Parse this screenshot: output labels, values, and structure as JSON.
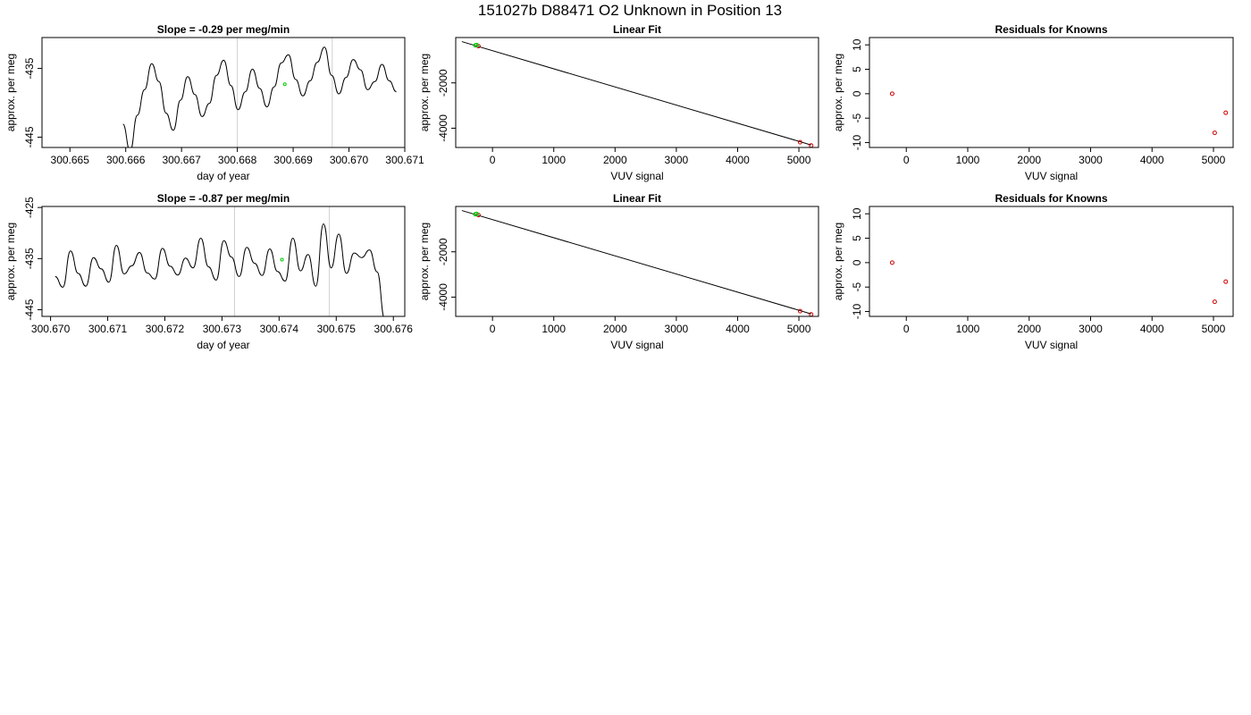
{
  "page": {
    "title": "151027b     D88471   O2 Unknown in Position  13"
  },
  "chart_data": [
    {
      "type": "line",
      "title": "Slope =  -0.29  per meg/min",
      "xlabel": "day of year",
      "ylabel": "approx. per meg",
      "xlim": [
        300.6645,
        300.671
      ],
      "ylim": [
        -446.5,
        -430.5
      ],
      "xticks": [
        "300.665",
        "300.666",
        "300.667",
        "300.668",
        "300.669",
        "300.670",
        "300.671"
      ],
      "yticks": [
        "-435",
        "-445"
      ],
      "vlines": [
        300.668,
        300.6697
      ],
      "marker": {
        "x": 300.66885,
        "y": -437.3,
        "color": "#00cc00"
      },
      "series": [
        {
          "x_start": 300.66595,
          "x_end": 300.67085,
          "seed": 7,
          "base": -439.2,
          "amp": 4.6,
          "values": [
            -443.1,
            -447.0,
            -441.8,
            -438.1,
            -434.3,
            -436.9,
            -441.5,
            -444.0,
            -439.6,
            -436.2,
            -438.8,
            -442.0,
            -440.1,
            -436.0,
            -433.8,
            -437.5,
            -441.0,
            -438.4,
            -435.1,
            -437.9,
            -440.6,
            -437.7,
            -434.2,
            -433.0,
            -436.6,
            -439.0,
            -436.8,
            -434.1,
            -431.9,
            -436.0,
            -438.7,
            -436.3,
            -433.7,
            -435.2,
            -438.1,
            -436.9,
            -434.4,
            -436.8,
            -438.4
          ]
        }
      ]
    },
    {
      "type": "scatter",
      "title": "Linear Fit",
      "xlabel": "VUV signal",
      "ylabel": "approx. per meg",
      "xlim": [
        -600,
        5320
      ],
      "ylim": [
        -4850,
        0
      ],
      "xticks": [
        0,
        1000,
        2000,
        3000,
        4000,
        5000
      ],
      "yticks": [
        -2000,
        -4000
      ],
      "fit_line": {
        "x": [
          -500,
          5200
        ],
        "y": [
          -180,
          -4740
        ]
      },
      "knowns": {
        "x": [
          -230,
          5020,
          5200
        ],
        "y": [
          -380,
          -4620,
          -4760
        ],
        "color": "#cc0000"
      },
      "unknowns": {
        "x": [
          -280,
          -260
        ],
        "y": [
          -345,
          -330
        ],
        "color": "#00cc00"
      }
    },
    {
      "type": "scatter",
      "title": "Residuals for Knowns",
      "xlabel": "VUV signal",
      "ylabel": "approx. per meg",
      "xlim": [
        -600,
        5320
      ],
      "ylim": [
        -11,
        11.5
      ],
      "xticks": [
        0,
        1000,
        2000,
        3000,
        4000,
        5000
      ],
      "yticks": [
        10,
        5,
        0,
        -5,
        -10
      ],
      "points": {
        "x": [
          -230,
          5020,
          5200
        ],
        "y": [
          0,
          -8,
          -3.9
        ],
        "color": "#cc0000"
      }
    },
    {
      "type": "line",
      "title": "Slope =  -0.87  per meg/min",
      "xlabel": "day of year",
      "ylabel": "approx. per meg",
      "xlim": [
        300.66985,
        300.6762
      ],
      "ylim": [
        -446.3,
        -424.8
      ],
      "xticks": [
        "300.670",
        "300.671",
        "300.672",
        "300.673",
        "300.674",
        "300.675",
        "300.676"
      ],
      "yticks": [
        "-425",
        "-435",
        "-445"
      ],
      "vlines": [
        300.67322,
        300.67488
      ],
      "marker": {
        "x": 300.67405,
        "y": -435.2,
        "color": "#00cc00"
      },
      "series": [
        {
          "x_start": 300.67008,
          "x_end": 300.67585,
          "seed": 11,
          "base": -436.0,
          "amp": 5.2,
          "values": [
            -438.5,
            -440.6,
            -433.5,
            -437.9,
            -440.4,
            -434.8,
            -437.0,
            -439.6,
            -432.4,
            -438.0,
            -436.4,
            -433.8,
            -437.8,
            -439.0,
            -433.0,
            -436.5,
            -438.2,
            -434.9,
            -436.8,
            -431.0,
            -436.6,
            -439.2,
            -431.5,
            -434.7,
            -438.5,
            -432.8,
            -435.9,
            -438.3,
            -433.1,
            -437.5,
            -439.4,
            -431.0,
            -437.4,
            -434.2,
            -440.4,
            -428.2,
            -436.8,
            -430.2,
            -437.9,
            -433.9,
            -434.8,
            -433.3,
            -437.6,
            -446.8
          ]
        }
      ]
    },
    {
      "type": "scatter",
      "title": "Linear Fit",
      "xlabel": "VUV signal",
      "ylabel": "approx. per meg",
      "xlim": [
        -600,
        5320
      ],
      "ylim": [
        -4850,
        0
      ],
      "xticks": [
        0,
        1000,
        2000,
        3000,
        4000,
        5000
      ],
      "yticks": [
        -2000,
        -4000
      ],
      "fit_line": {
        "x": [
          -500,
          5200
        ],
        "y": [
          -180,
          -4740
        ]
      },
      "knowns": {
        "x": [
          -230,
          5020,
          5200
        ],
        "y": [
          -380,
          -4620,
          -4760
        ],
        "color": "#cc0000"
      },
      "unknowns": {
        "x": [
          -280,
          -260
        ],
        "y": [
          -345,
          -330
        ],
        "color": "#00cc00"
      }
    },
    {
      "type": "scatter",
      "title": "Residuals for Knowns",
      "xlabel": "VUV signal",
      "ylabel": "approx. per meg",
      "xlim": [
        -600,
        5320
      ],
      "ylim": [
        -11,
        11.5
      ],
      "xticks": [
        0,
        1000,
        2000,
        3000,
        4000,
        5000
      ],
      "yticks": [
        10,
        5,
        0,
        -5,
        -10
      ],
      "points": {
        "x": [
          -230,
          5020,
          5200
        ],
        "y": [
          0,
          -8,
          -3.9
        ],
        "color": "#cc0000"
      }
    }
  ]
}
